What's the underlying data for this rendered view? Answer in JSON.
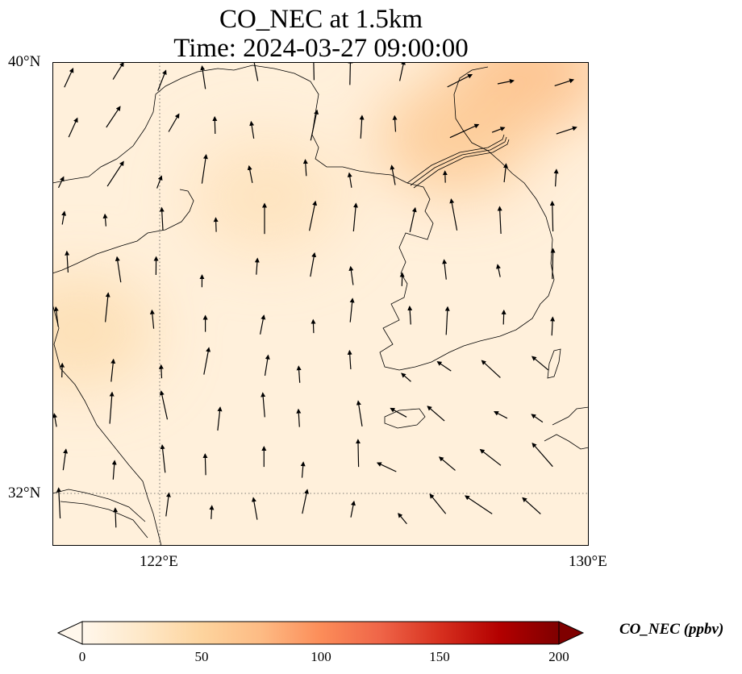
{
  "title": {
    "line1": "CO_NEC at 1.5km",
    "line2": "Time: 2024-03-27 09:00:00"
  },
  "axes": {
    "lat_ticks": [
      "40°N",
      "32°N"
    ],
    "lon_ticks": [
      "122°E",
      "130°E"
    ],
    "extent": {
      "lon_min": 120,
      "lon_max": 130,
      "lat_min": 31,
      "lat_max": 40
    },
    "gridlines": "dotted"
  },
  "colorbar": {
    "label": "CO_NEC (ppbv)",
    "ticks": [
      "0",
      "50",
      "100",
      "150",
      "200"
    ],
    "min": 0,
    "max": 200,
    "colormap": "OrRd",
    "extend": "both",
    "colors": [
      "#fff7ec",
      "#fee8c8",
      "#fdd49e",
      "#fdbb84",
      "#fc8d59",
      "#ef6548",
      "#d7301f",
      "#b30000",
      "#7f0000"
    ]
  },
  "field": {
    "background_value_ppbv": 12,
    "hotspots_ppbv": [
      {
        "region": "northeast corner",
        "lon": 128.9,
        "lat": 39.8,
        "value": 70
      },
      {
        "region": "north Korean interior",
        "lon": 127.5,
        "lat": 38.6,
        "value": 60
      },
      {
        "region": "central Yellow Sea",
        "lon": 124.0,
        "lat": 37.5,
        "value": 32
      },
      {
        "region": "west coast",
        "lon": 120.5,
        "lat": 35.0,
        "value": 38
      }
    ]
  },
  "wind_vectors": {
    "description": "wind arrows",
    "dominant_direction": "northward"
  }
}
